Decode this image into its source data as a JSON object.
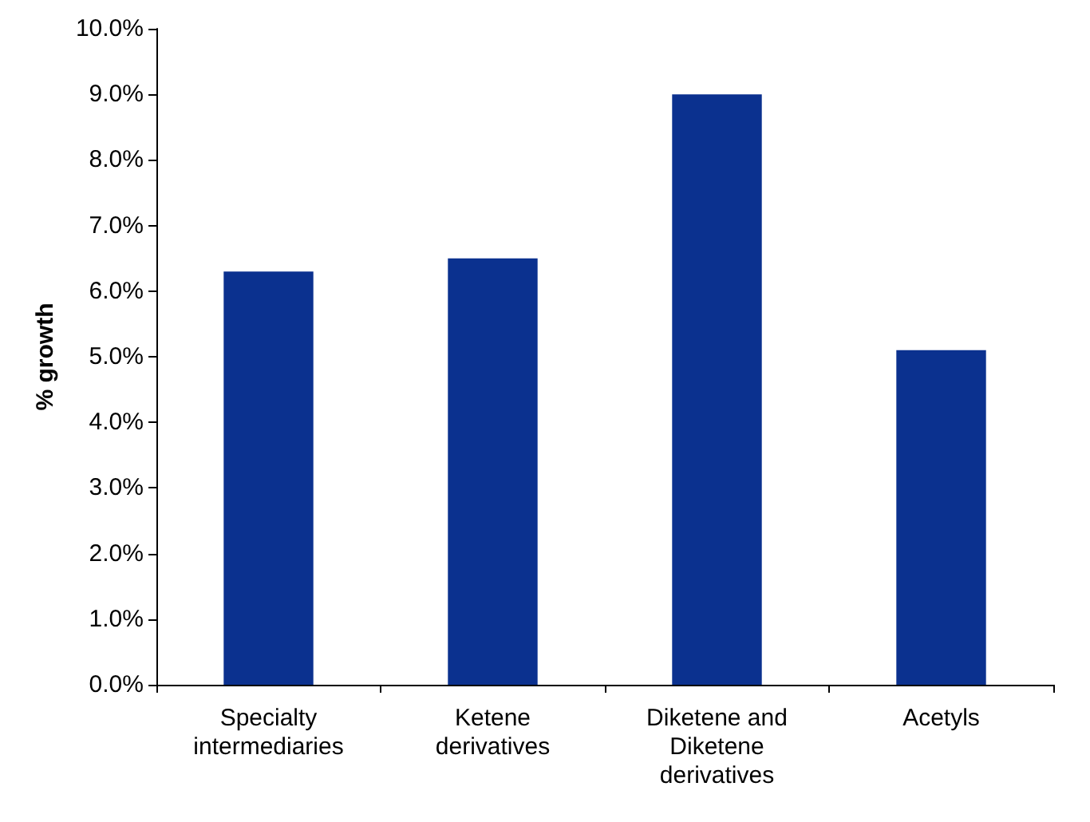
{
  "chart_data": {
    "type": "bar",
    "ylabel": "% growth",
    "categories": [
      "Specialty\nintermediaries",
      "Ketene\nderivatives",
      "Diketene and\nDiketene\nderivatives",
      "Acetyls"
    ],
    "values": [
      6.3,
      6.5,
      9.0,
      5.1
    ],
    "color": "#0b318f",
    "ylim": [
      0,
      10
    ],
    "yticks": [
      {
        "value": 0,
        "label": "0.0%"
      },
      {
        "value": 1,
        "label": "1.0%"
      },
      {
        "value": 2,
        "label": "2.0%"
      },
      {
        "value": 3,
        "label": "3.0%"
      },
      {
        "value": 4,
        "label": "4.0%"
      },
      {
        "value": 5,
        "label": "5.0%"
      },
      {
        "value": 6,
        "label": "6.0%"
      },
      {
        "value": 7,
        "label": "7.0%"
      },
      {
        "value": 8,
        "label": "8.0%"
      },
      {
        "value": 9,
        "label": "9.0%"
      },
      {
        "value": 10,
        "label": "10.0%"
      }
    ],
    "grid": false
  }
}
